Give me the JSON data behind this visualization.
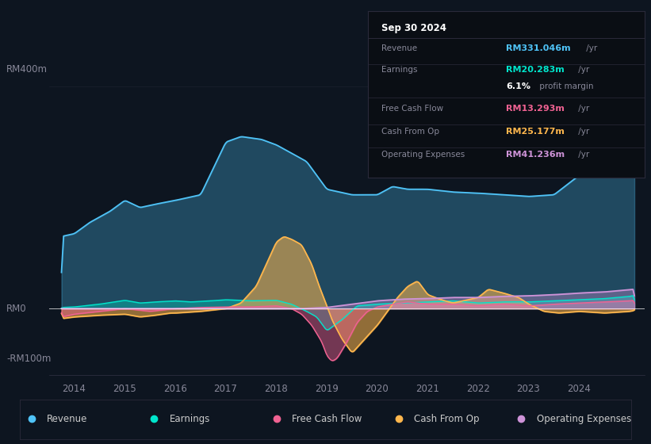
{
  "bg_color": "#0d1520",
  "plot_bg_color": "#0d1520",
  "zero_line_color": "#ffffff",
  "ylabel_rm400": "RM400m",
  "ylabel_rm0": "RM0",
  "ylabel_rmminus100": "-RM100m",
  "info_box": {
    "bg": "#0a0e14",
    "border": "#2a2a3a",
    "title": "Sep 30 2024",
    "rows": [
      {
        "label": "Revenue",
        "value": "RM331.046m",
        "suffix": " /yr",
        "color": "#4fc3f7"
      },
      {
        "label": "Earnings",
        "value": "RM20.283m",
        "suffix": " /yr",
        "color": "#00e5cc"
      },
      {
        "label": "",
        "value": "6.1%",
        "suffix": " profit margin",
        "color": "#ffffff"
      },
      {
        "label": "Free Cash Flow",
        "value": "RM13.293m",
        "suffix": " /yr",
        "color": "#f06292"
      },
      {
        "label": "Cash From Op",
        "value": "RM25.177m",
        "suffix": " /yr",
        "color": "#ffb74d"
      },
      {
        "label": "Operating Expenses",
        "value": "RM41.236m",
        "suffix": " /yr",
        "color": "#ce93d8"
      }
    ]
  },
  "legend": [
    {
      "label": "Revenue",
      "color": "#4fc3f7"
    },
    {
      "label": "Earnings",
      "color": "#00e5cc"
    },
    {
      "label": "Free Cash Flow",
      "color": "#f06292"
    },
    {
      "label": "Cash From Op",
      "color": "#ffb74d"
    },
    {
      "label": "Operating Expenses",
      "color": "#ce93d8"
    }
  ],
  "xlim": [
    2013.5,
    2025.3
  ],
  "ylim": [
    -120,
    440
  ],
  "xticks": [
    2014,
    2015,
    2016,
    2017,
    2018,
    2019,
    2020,
    2021,
    2022,
    2023,
    2024
  ],
  "revenue_color": "#4fc3f7",
  "earnings_color": "#00e5cc",
  "fcf_color": "#f06292",
  "cashop_color": "#ffb74d",
  "opex_color": "#ce93d8"
}
